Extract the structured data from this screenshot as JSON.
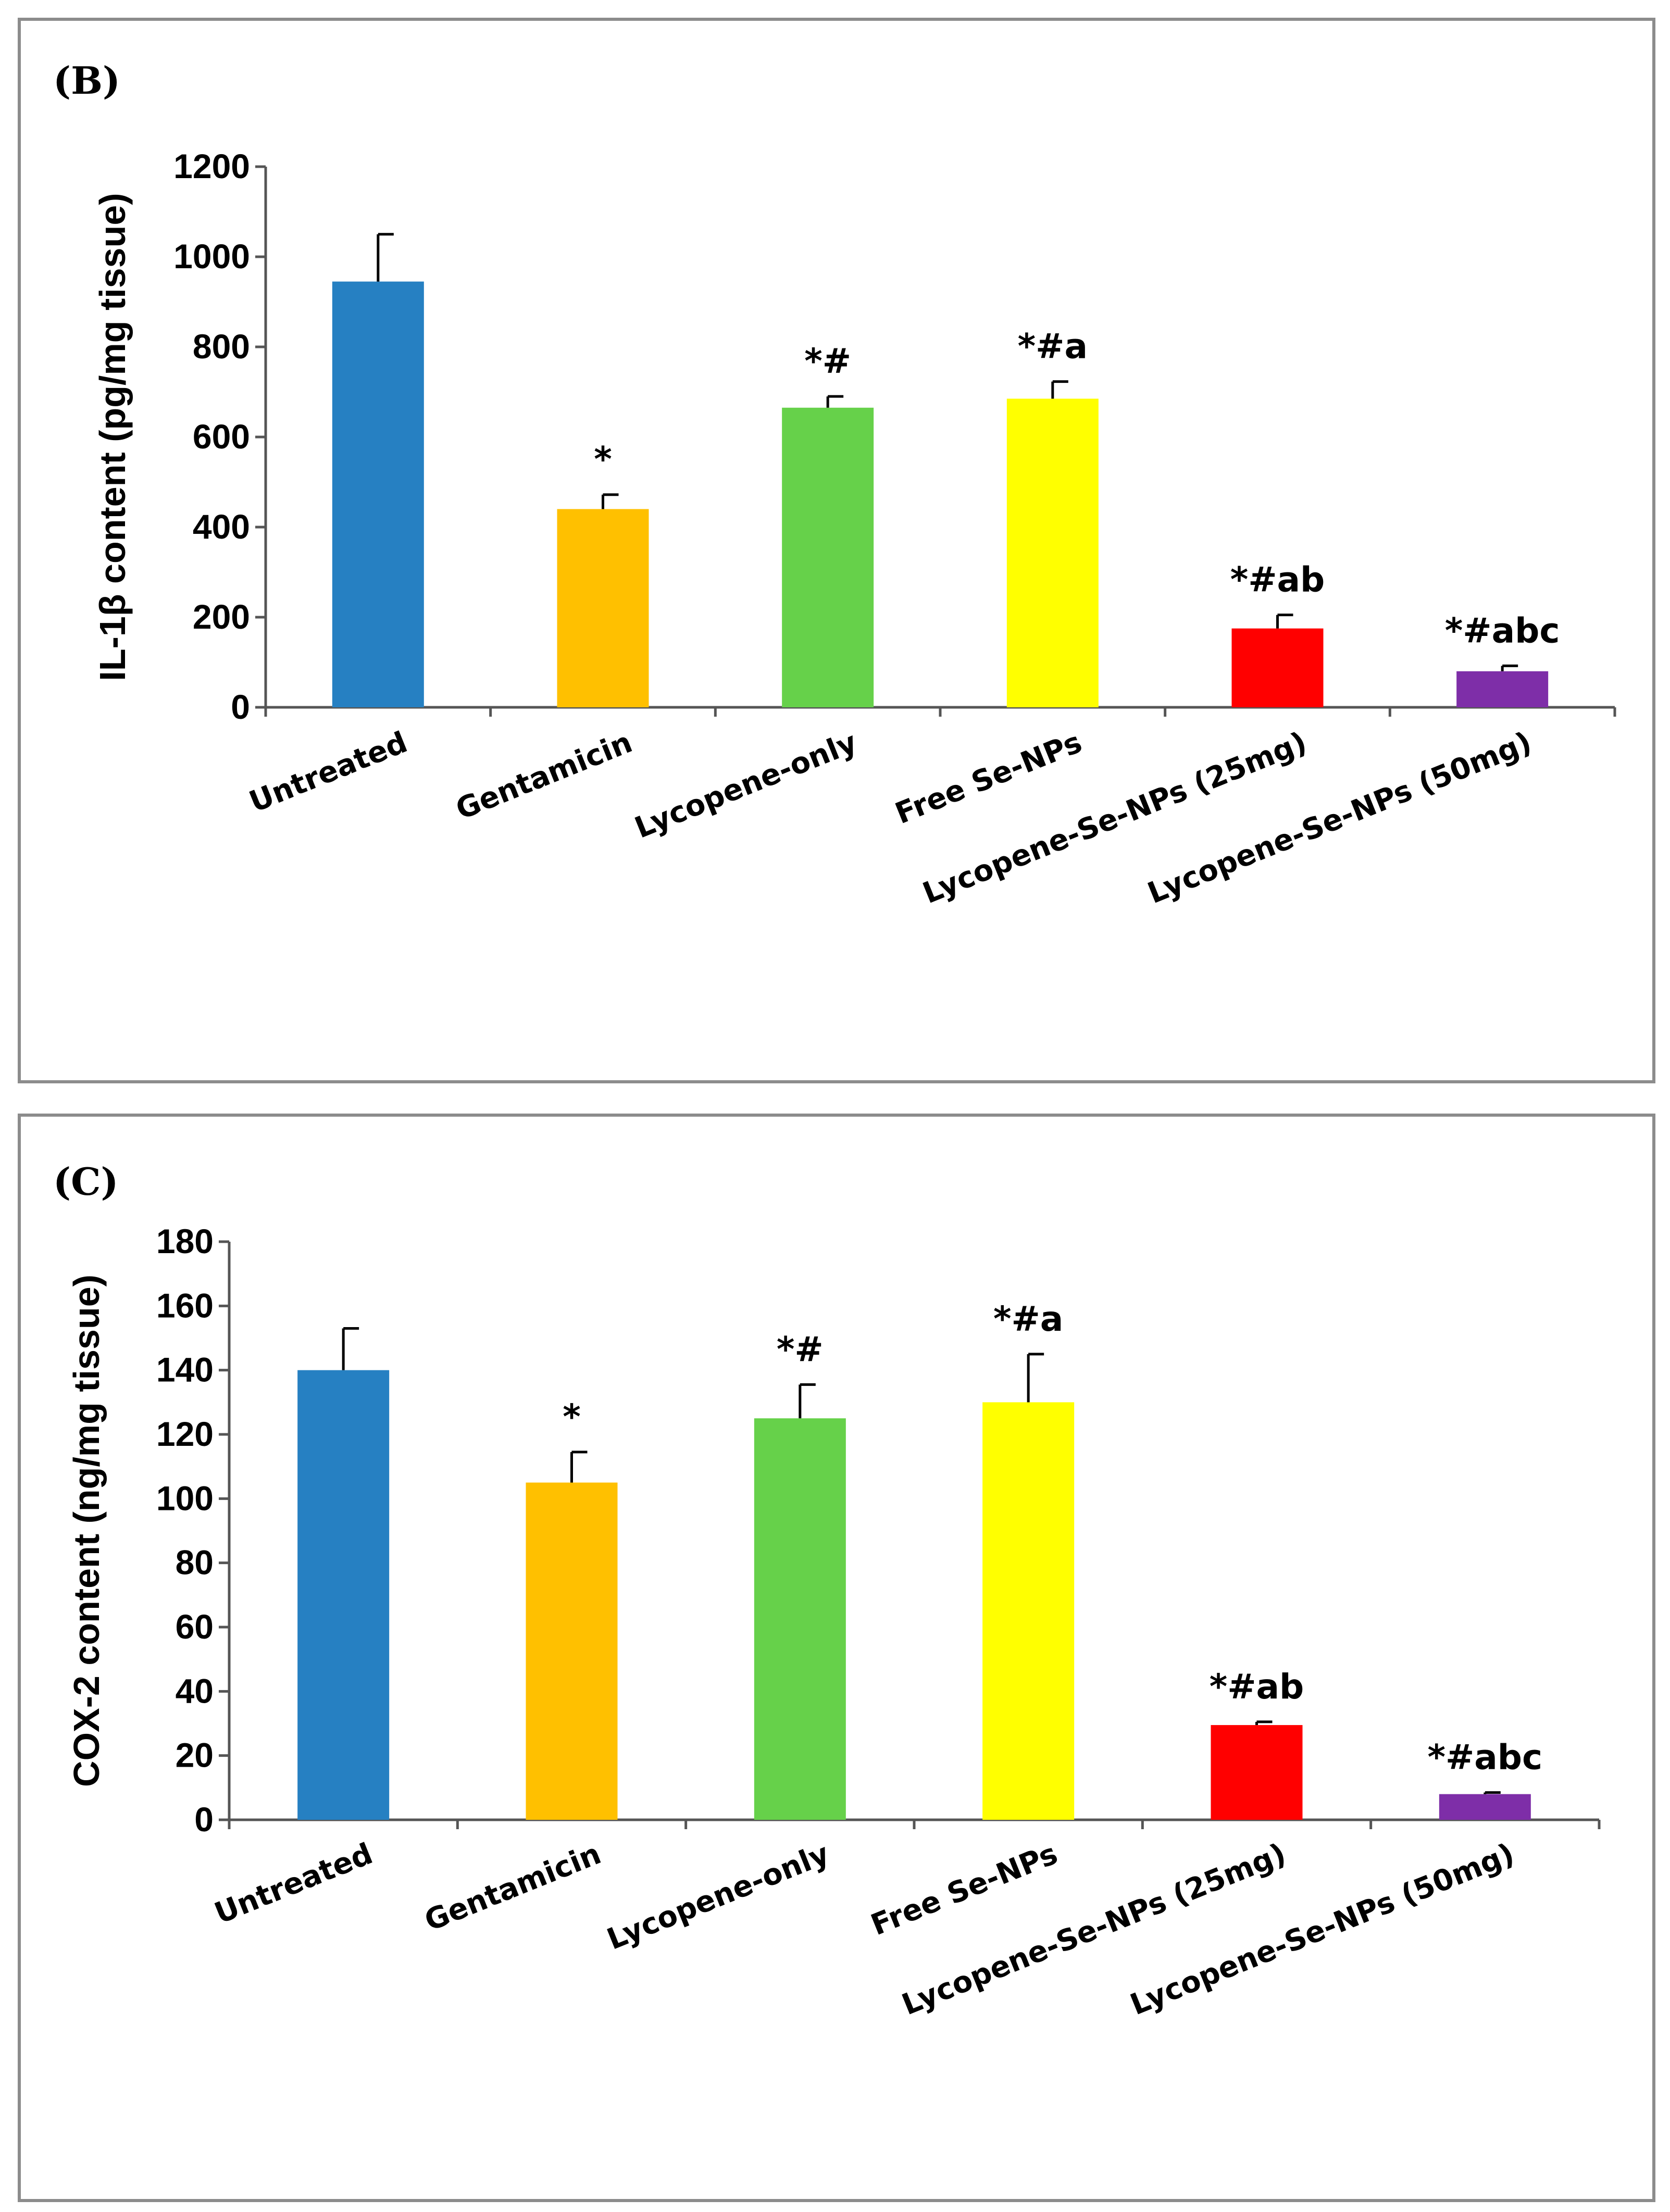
{
  "chart_data": [
    {
      "type": "bar",
      "panel_label": "(B)",
      "ylabel": "IL-1β content (pg/mg tissue)",
      "ylim": [
        0,
        1200
      ],
      "yticks": [
        0,
        200,
        400,
        600,
        800,
        1000,
        1200
      ],
      "categories": [
        "Untreated",
        "Gentamicin",
        "Lycopene-only",
        "Free Se-NPs",
        "Lycopene-Se-NPs (25mg)",
        "Lycopene-Se-NPs (50mg)"
      ],
      "values": [
        945,
        440,
        665,
        685,
        175,
        80
      ],
      "errors": [
        105,
        32,
        25,
        38,
        30,
        12
      ],
      "annotations": [
        "",
        "*",
        "*#",
        "*#a",
        "*#ab",
        "*#abc"
      ],
      "colors": [
        "#2680c2",
        "#ffc000",
        "#66d14a",
        "#ffff00",
        "#ff0000",
        "#7e2ea8"
      ]
    },
    {
      "type": "bar",
      "panel_label": "(C)",
      "ylabel": "COX-2 content (ng/mg tissue)",
      "ylim": [
        0,
        180
      ],
      "yticks": [
        0,
        20,
        40,
        60,
        80,
        100,
        120,
        140,
        160,
        180
      ],
      "categories": [
        "Untreated",
        "Gentamicin",
        "Lycopene-only",
        "Free Se-NPs",
        "Lycopene-Se-NPs (25mg)",
        "Lycopene-Se-NPs (50mg)"
      ],
      "values": [
        140,
        105,
        125,
        130,
        29.5,
        8
      ],
      "errors": [
        13,
        9.5,
        10.5,
        15,
        1,
        0.5
      ],
      "annotations": [
        "",
        "*",
        "*#",
        "*#a",
        "*#ab",
        "*#abc"
      ],
      "colors": [
        "#2680c2",
        "#ffc000",
        "#66d14a",
        "#ffff00",
        "#ff0000",
        "#7e2ea8"
      ]
    }
  ]
}
